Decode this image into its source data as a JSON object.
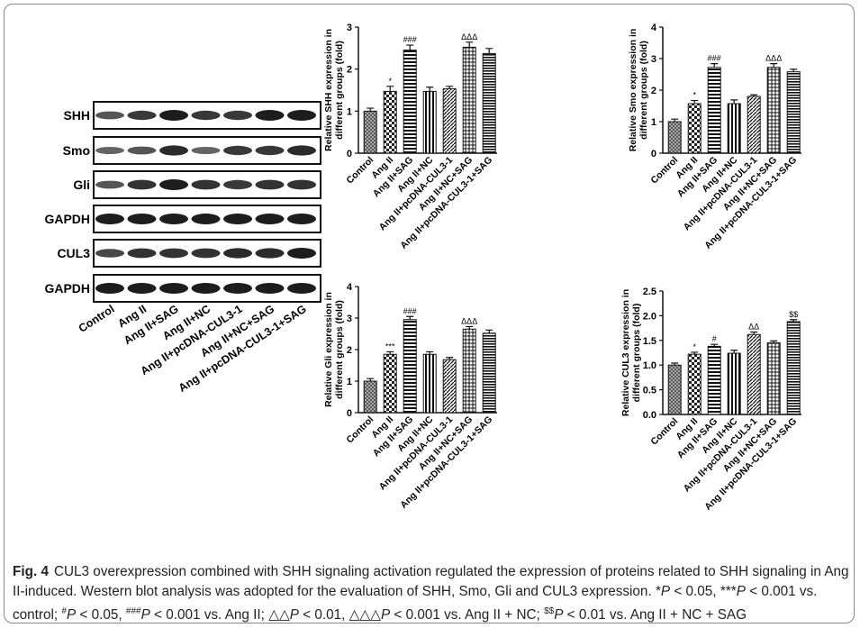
{
  "blot": {
    "rows": [
      "SHH",
      "Smo",
      "Gli",
      "GAPDH",
      "CUL3",
      "GAPDH"
    ],
    "lanes": [
      "Control",
      "Ang II",
      "Ang II+SAG",
      "Ang II+NC",
      "Ang II+pcDNA-CUL3-1",
      "Ang II+NC+SAG",
      "Ang II+pcDNA-CUL3-1+SAG"
    ]
  },
  "chart_data": [
    {
      "type": "bar",
      "ylabel": [
        "Relative SHH expression in",
        "different groups (fold)"
      ],
      "categories": [
        "Control",
        "Ang II",
        "Ang II+SAG",
        "Ang II+NC",
        "Ang II+pcDNA-CUL3-1",
        "Ang II+NC+SAG",
        "Ang II+pcDNA-CUL3-1+SAG"
      ],
      "values": [
        1.0,
        1.47,
        2.45,
        1.47,
        1.53,
        2.52,
        2.37
      ],
      "errors": [
        0.07,
        0.12,
        0.12,
        0.1,
        0.06,
        0.12,
        0.12
      ],
      "annotations": [
        null,
        "*",
        "###",
        null,
        null,
        "ΔΔΔ",
        null
      ],
      "ylim": [
        0,
        3
      ],
      "yticks": [
        0,
        1,
        2,
        3
      ]
    },
    {
      "type": "bar",
      "ylabel": [
        "Relative Smo expression in",
        "different groups (fold)"
      ],
      "categories": [
        "Control",
        "Ang II",
        "Ang II+SAG",
        "Ang II+NC",
        "Ang II+pcDNA-CUL3-1",
        "Ang II+NC+SAG",
        "Ang II+pcDNA-CUL3-1+SAG"
      ],
      "values": [
        1.0,
        1.57,
        2.72,
        1.57,
        1.8,
        2.72,
        2.58
      ],
      "errors": [
        0.08,
        0.1,
        0.12,
        0.12,
        0.05,
        0.12,
        0.08
      ],
      "annotations": [
        null,
        "*",
        "###",
        null,
        null,
        "ΔΔΔ",
        null
      ],
      "ylim": [
        0,
        4
      ],
      "yticks": [
        0,
        1,
        2,
        3,
        4
      ]
    },
    {
      "type": "bar",
      "ylabel": [
        "Relative Gli expression in",
        "different groups (fold)"
      ],
      "categories": [
        "Control",
        "Ang II",
        "Ang II+SAG",
        "Ang II+NC",
        "Ang II+pcDNA-CUL3-1",
        "Ang II+NC+SAG",
        "Ang II+pcDNA-CUL3-1+SAG"
      ],
      "values": [
        1.0,
        1.85,
        2.95,
        1.85,
        1.68,
        2.65,
        2.52
      ],
      "errors": [
        0.08,
        0.08,
        0.1,
        0.08,
        0.07,
        0.08,
        0.1
      ],
      "annotations": [
        null,
        "***",
        "###",
        null,
        null,
        "ΔΔΔ",
        null
      ],
      "ylim": [
        0,
        4
      ],
      "yticks": [
        0,
        1,
        2,
        3,
        4
      ]
    },
    {
      "type": "bar",
      "ylabel": [
        "Relative CUL3 expression in",
        "different groups (fold)"
      ],
      "categories": [
        "Control",
        "Ang II",
        "Ang II+SAG",
        "Ang II+NC",
        "Ang II+pcDNA-CUL3-1",
        "Ang II+NC+SAG",
        "Ang II+pcDNA-CUL3-1+SAG"
      ],
      "values": [
        1.0,
        1.22,
        1.38,
        1.24,
        1.62,
        1.45,
        1.88
      ],
      "errors": [
        0.04,
        0.04,
        0.04,
        0.06,
        0.05,
        0.04,
        0.04
      ],
      "annotations": [
        null,
        "*",
        "#",
        null,
        "ΔΔ",
        null,
        "$$"
      ],
      "ylim": [
        0,
        2.5
      ],
      "yticks": [
        {
          "value": 0,
          "label": "0.0"
        },
        0.5,
        {
          "value": 1,
          "label": "1.0"
        },
        1.5,
        {
          "value": 2,
          "label": "2.0"
        },
        2.5
      ]
    }
  ],
  "caption": {
    "label": "Fig. 4",
    "runs": [
      "CUL3 overexpression combined with SHH signaling activation regulated the expression of proteins related to SHH signaling in Ang II-induced. Western blot analysis was adopted for the evaluation of SHH, Smo, Gli and CUL3 expression. *",
      "P",
      " < 0.05, ***",
      "P",
      " < 0.001 vs. control; ",
      "#",
      "P",
      " < 0.05, ",
      "###",
      "P",
      " < 0.001 vs. Ang II; ",
      "△△",
      "P",
      " < 0.01, ",
      "△△△",
      "P",
      " < 0.001 vs. Ang II + NC; ",
      "$$",
      "P",
      " < 0.01 vs. Ang II + NC + SAG"
    ]
  }
}
